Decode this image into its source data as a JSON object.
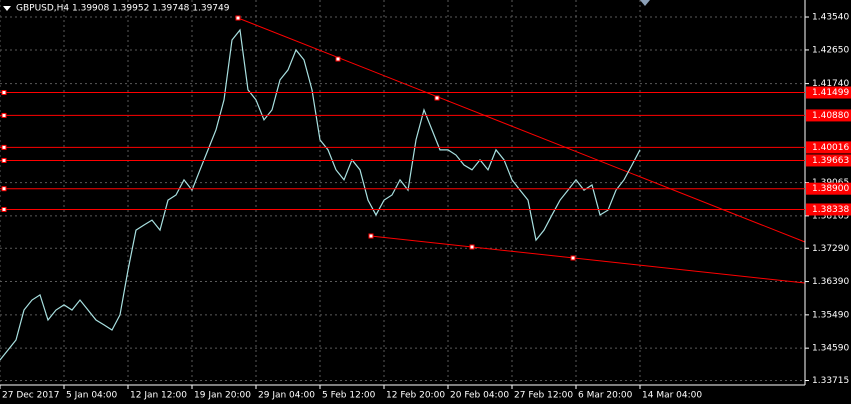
{
  "chart_data": {
    "type": "line",
    "title": "GBPUSD,H4  1.39908 1.39952 1.39748 1.39749",
    "categories": [
      "27 Dec 2017",
      null,
      null,
      null,
      null,
      null,
      null,
      null,
      "5 Jan 04:00",
      null,
      null,
      null,
      null,
      null,
      null,
      null,
      "12 Jan 12:00",
      null,
      null,
      null,
      null,
      null,
      null,
      null,
      "19 Jan 20:00",
      null,
      null,
      null,
      null,
      null,
      null,
      null,
      "29 Jan 04:00",
      null,
      null,
      null,
      null,
      null,
      null,
      null,
      "5 Feb 12:00",
      null,
      null,
      null,
      null,
      null,
      null,
      null,
      "12 Feb 20:00",
      null,
      null,
      null,
      null,
      null,
      null,
      null,
      "20 Feb 04:00",
      null,
      null,
      null,
      null,
      null,
      null,
      null,
      "27 Feb 12:00",
      null,
      null,
      null,
      null,
      null,
      null,
      null,
      "6 Mar 20:00",
      null,
      null,
      null,
      null,
      null,
      null,
      null,
      "14 Mar 04:00"
    ],
    "series": [
      {
        "name": "GBPUSD",
        "color": "#a8e0e0",
        "values": [
          1.3427,
          1.3454,
          1.3481,
          1.3562,
          1.3589,
          1.3603,
          1.3535,
          1.3562,
          1.3576,
          1.3562,
          1.3589,
          1.3562,
          1.3535,
          1.3522,
          1.3508,
          1.3549,
          1.367,
          1.3778,
          1.3792,
          1.3805,
          1.3778,
          1.3859,
          1.3873,
          1.3914,
          1.3886,
          1.3941,
          1.3995,
          1.4049,
          1.413,
          1.4292,
          1.4319,
          1.4157,
          1.413,
          1.4076,
          1.4103,
          1.4184,
          1.4211,
          1.4265,
          1.4238,
          1.4157,
          1.4022,
          1.3995,
          1.3941,
          1.3914,
          1.3968,
          1.3941,
          1.3859,
          1.3819,
          1.3859,
          1.3873,
          1.3914,
          1.3886,
          1.4022,
          1.4103,
          1.4049,
          1.3995,
          1.3995,
          1.3981,
          1.3954,
          1.3941,
          1.3968,
          1.3941,
          1.3995,
          1.3968,
          1.3914,
          1.3886,
          1.3859,
          1.3751,
          1.3778,
          1.3819,
          1.3859,
          1.3886,
          1.3914,
          1.3886,
          1.39,
          1.3819,
          1.3832,
          1.3886,
          1.3914,
          1.3954,
          1.3995
        ]
      }
    ],
    "ylim": [
      1.44,
      1.33594
    ],
    "yticks": [
      {
        "value": 1.4354,
        "label": "1.43540"
      },
      {
        "value": 1.4265,
        "label": "1.42650"
      },
      {
        "value": 1.4174,
        "label": "1.41740"
      },
      {
        "value": 1.39065,
        "label": "1.39065"
      },
      {
        "value": 1.38165,
        "label": "1.38165"
      },
      {
        "value": 1.3729,
        "label": "1.37290"
      },
      {
        "value": 1.3639,
        "label": "1.36390"
      },
      {
        "value": 1.3549,
        "label": "1.35490"
      },
      {
        "value": 1.3459,
        "label": "1.34590"
      },
      {
        "value": 1.33715,
        "label": "1.33715"
      }
    ],
    "levels": [
      {
        "value": 1.41499,
        "label": "1.41499"
      },
      {
        "value": 1.4088,
        "label": "1.40880"
      },
      {
        "value": 1.40016,
        "label": "1.40016"
      },
      {
        "value": 1.39663,
        "label": "1.39663"
      },
      {
        "value": 1.389,
        "label": "1.38900"
      },
      {
        "value": 1.38338,
        "label": "1.38338"
      }
    ],
    "level_color": "#ff0000",
    "grid": true
  }
}
